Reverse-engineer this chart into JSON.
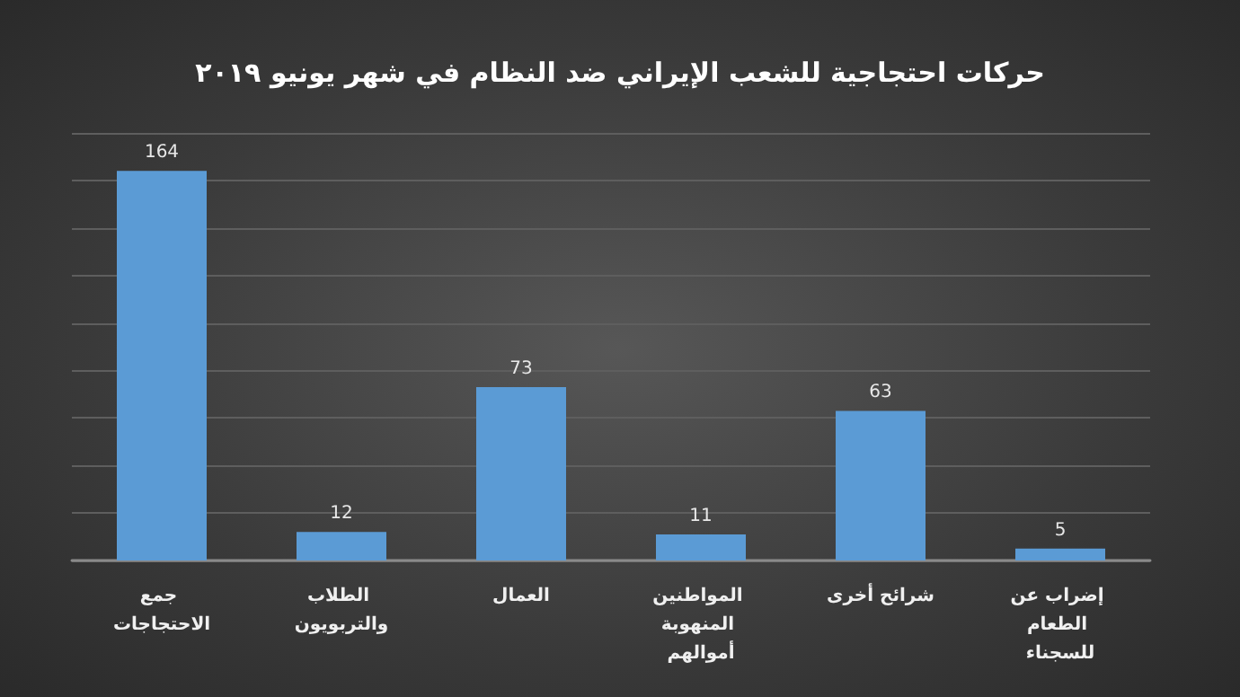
{
  "chart_data": {
    "type": "bar",
    "title": "حركات احتجاجية للشعب الإيراني ضد النظام في شهر يونيو ۲۰۱۹",
    "categories": [
      "جمع الاحتجاجات",
      "الطلاب والتربويون",
      "العمال",
      "المواطنين المنهوبة أموالهم",
      "شرائح أخرى",
      "إضراب عن الطعام للسجناء"
    ],
    "values": [
      164,
      12,
      73,
      11,
      63,
      5
    ],
    "color": "#5b9bd5",
    "data_labels": true,
    "ylim": [
      0,
      180
    ],
    "yticks": [
      {
        "value": 0,
        "label": null
      },
      {
        "value": 20,
        "label": null
      },
      {
        "value": 40,
        "label": null
      },
      {
        "value": 60,
        "label": null
      },
      {
        "value": 80,
        "label": null
      },
      {
        "value": 100,
        "label": null
      },
      {
        "value": 120,
        "label": null
      },
      {
        "value": 140,
        "label": null
      },
      {
        "value": 160,
        "label": null
      },
      {
        "value": 180,
        "label": null
      }
    ],
    "grid": "y",
    "tick_labels": "x"
  }
}
